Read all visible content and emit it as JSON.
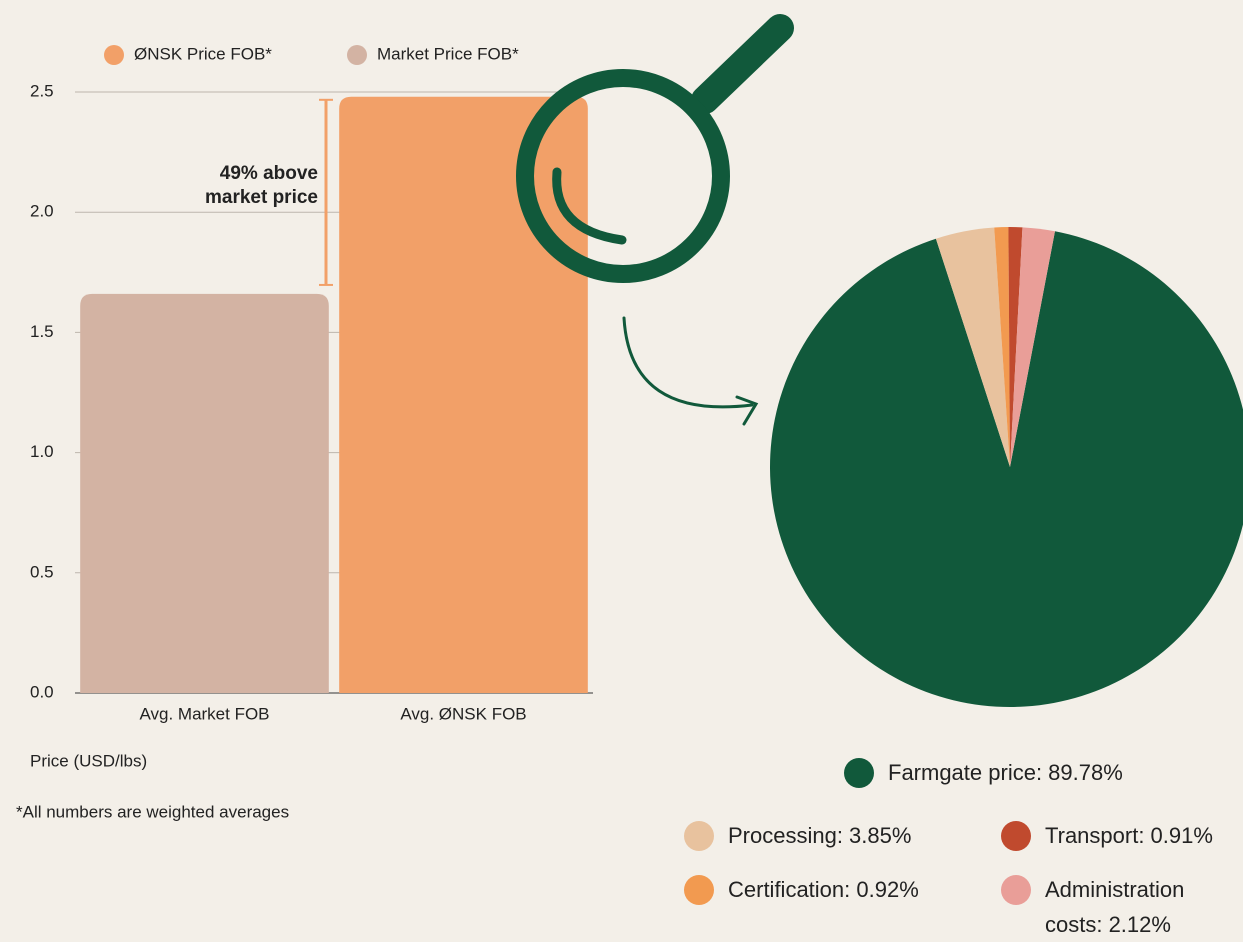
{
  "chart_data": [
    {
      "type": "bar",
      "categories": [
        "Avg. Market FOB",
        "Avg. ØNSK FOB"
      ],
      "series": [
        {
          "name": "ØNSK Price FOB*",
          "color": "#f2a068",
          "values": [
            null,
            2.48
          ]
        },
        {
          "name": "Market Price FOB*",
          "color": "#d3b3a3",
          "values": [
            1.66,
            null
          ]
        }
      ],
      "ylim": [
        0,
        2.5
      ],
      "yticks": [
        {
          "value": 0,
          "label": "0.0"
        },
        0.5,
        {
          "value": 1,
          "label": "1.0"
        },
        1.5,
        {
          "value": 2,
          "label": "2.0"
        },
        2.5
      ],
      "grid": true,
      "ylabel": "Price (USD/lbs)",
      "annotation": "49% above market price",
      "footnote": "*All numbers are weighted averages"
    },
    {
      "type": "pie",
      "labels": [
        "Farmgate price: 89.78%",
        "Processing: 3.85%",
        "Certification: 0.92%",
        "Transport: 0.91%",
        "Administration costs: 2.12%"
      ],
      "values": [
        89.78,
        3.85,
        0.92,
        0.91,
        2.12
      ],
      "colors": [
        "#11593b",
        "#e8c29e",
        "#f29a50",
        "#c04a2e",
        "#e99e98"
      ]
    }
  ]
}
